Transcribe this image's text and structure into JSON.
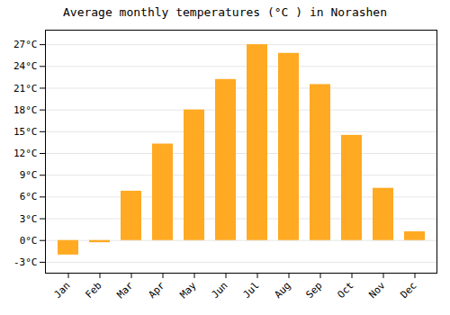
{
  "chart_data": {
    "type": "bar",
    "title": "Average monthly temperatures (°C ) in Norashen",
    "categories": [
      "Jan",
      "Feb",
      "Mar",
      "Apr",
      "May",
      "Jun",
      "Jul",
      "Aug",
      "Sep",
      "Oct",
      "Nov",
      "Dec"
    ],
    "values": [
      -2.0,
      -0.3,
      6.8,
      13.3,
      18.0,
      22.2,
      27.0,
      25.8,
      21.5,
      14.5,
      7.2,
      1.2
    ],
    "color": "#FFAA22",
    "ylim": [
      -4.5,
      29
    ],
    "yticks": [
      {
        "value": -3,
        "label": "-3°C"
      },
      {
        "value": 0,
        "label": "0°C"
      },
      {
        "value": 3,
        "label": "3°C"
      },
      {
        "value": 6,
        "label": "6°C"
      },
      {
        "value": 9,
        "label": "9°C"
      },
      {
        "value": 12,
        "label": "12°C"
      },
      {
        "value": 15,
        "label": "15°C"
      },
      {
        "value": 18,
        "label": "18°C"
      },
      {
        "value": 21,
        "label": "21°C"
      },
      {
        "value": 24,
        "label": "24°C"
      },
      {
        "value": 27,
        "label": "27°C"
      }
    ],
    "grid": true
  }
}
